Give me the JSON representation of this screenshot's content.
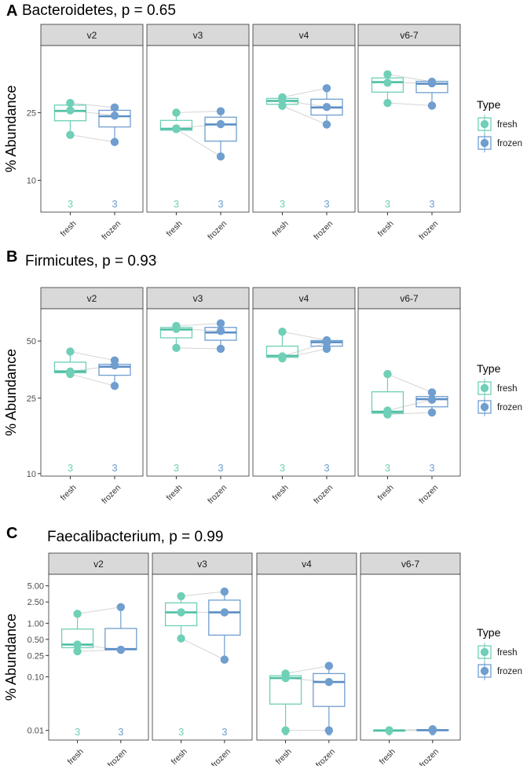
{
  "legend": {
    "title": "Type",
    "items": [
      {
        "label": "fresh",
        "color": "#6fcfb7"
      },
      {
        "label": "frozen",
        "color": "#6f9ecf"
      }
    ]
  },
  "y_axis_label": "% Abundance",
  "x_tick_labels": [
    "fresh",
    "frozen"
  ],
  "chart_data": [
    {
      "type": "boxplot",
      "letter": "A",
      "title": "Bacteroidetes, p = 0.65",
      "ylabel": "% Abundance",
      "yscale": "log",
      "ylim": [
        6.5,
        62
      ],
      "yticks": [
        {
          "value": 10,
          "label": "10"
        },
        {
          "value": 25,
          "label": "25"
        }
      ],
      "facets": [
        {
          "label": "v2",
          "fresh": {
            "points": [
              28.5,
              25.8,
              18.5
            ],
            "box": [
              22.4,
              25.6,
              27.7
            ],
            "whisker": [
              18.5,
              28.5
            ],
            "n": "3"
          },
          "frozen": {
            "points": [
              26.8,
              24.0,
              16.8
            ],
            "box": [
              20.6,
              23.8,
              25.8
            ],
            "whisker": [
              16.8,
              26.8
            ],
            "n": "3"
          }
        },
        {
          "label": "v3",
          "fresh": {
            "points": [
              25.0,
              20.2,
              20.0
            ],
            "box": [
              19.7,
              20.1,
              22.5
            ],
            "whisker": [
              19.7,
              25.0
            ],
            "n": "3"
          },
          "frozen": {
            "points": [
              25.5,
              21.4,
              13.8
            ],
            "box": [
              17.0,
              21.3,
              23.5
            ],
            "whisker": [
              13.8,
              25.5
            ],
            "n": "3"
          }
        },
        {
          "label": "v4",
          "fresh": {
            "points": [
              30.8,
              29.5,
              27.4
            ],
            "box": [
              28.0,
              29.3,
              30.3
            ],
            "whisker": [
              27.0,
              30.8
            ],
            "n": "3"
          },
          "frozen": {
            "points": [
              34.8,
              27.0,
              21.3
            ],
            "box": [
              24.2,
              26.8,
              30.0
            ],
            "whisker": [
              21.3,
              34.8
            ],
            "n": "3"
          }
        },
        {
          "label": "v6-7",
          "fresh": {
            "points": [
              42.0,
              37.5,
              28.5
            ],
            "box": [
              33.0,
              37.8,
              40.0
            ],
            "whisker": [
              28.5,
              42.5
            ],
            "n": "3"
          },
          "frozen": {
            "points": [
              38.0,
              37.2,
              27.5
            ],
            "box": [
              32.8,
              37.0,
              38.2
            ],
            "whisker": [
              27.5,
              38.2
            ],
            "n": "3"
          }
        }
      ]
    },
    {
      "type": "boxplot",
      "letter": "B",
      "title": "Firmicutes, p = 0.93",
      "ylabel": "% Abundance",
      "yscale": "log",
      "ylim": [
        9.7,
        74
      ],
      "yticks": [
        {
          "value": 10,
          "label": "10"
        },
        {
          "value": 25,
          "label": "25"
        },
        {
          "value": 50,
          "label": "50"
        }
      ],
      "facets": [
        {
          "label": "v2",
          "fresh": {
            "points": [
              44.0,
              34.5,
              33.5
            ],
            "box": [
              34.0,
              34.6,
              38.7
            ],
            "whisker": [
              33.5,
              44.0
            ],
            "n": "3"
          },
          "frozen": {
            "points": [
              39.5,
              37.2,
              29.0
            ],
            "box": [
              33.0,
              36.6,
              37.7
            ],
            "whisker": [
              29.0,
              39.5
            ],
            "n": "3"
          }
        },
        {
          "label": "v3",
          "fresh": {
            "points": [
              60.0,
              58.0,
              46.0
            ],
            "box": [
              52.0,
              57.5,
              59.0
            ],
            "whisker": [
              46.0,
              60.5
            ],
            "n": "3"
          },
          "frozen": {
            "points": [
              62.0,
              56.5,
              45.5
            ],
            "box": [
              50.5,
              55.5,
              59.0
            ],
            "whisker": [
              45.5,
              62.0
            ],
            "n": "3"
          }
        },
        {
          "label": "v4",
          "fresh": {
            "points": [
              56.0,
              41.5,
              40.5
            ],
            "box": [
              41.0,
              41.8,
              47.0
            ],
            "whisker": [
              40.5,
              56.0
            ],
            "n": "3"
          },
          "frozen": {
            "points": [
              50.5,
              49.0,
              45.5
            ],
            "box": [
              47.0,
              49.3,
              50.3
            ],
            "whisker": [
              45.5,
              50.5
            ],
            "n": "3"
          }
        },
        {
          "label": "v6-7",
          "fresh": {
            "points": [
              33.5,
              21.5,
              20.5
            ],
            "box": [
              20.8,
              21.2,
              27.0
            ],
            "whisker": [
              20.0,
              33.5
            ],
            "n": "3"
          },
          "frozen": {
            "points": [
              26.8,
              24.5,
              21.0
            ],
            "box": [
              22.5,
              24.7,
              25.5
            ],
            "whisker": [
              21.0,
              26.8
            ],
            "n": "3"
          }
        }
      ]
    },
    {
      "type": "boxplot",
      "letter": "C",
      "title": "Faecalibacterium, p = 0.99",
      "ylabel": "% Abundance",
      "yscale": "log",
      "ylim": [
        0.0066,
        8.2
      ],
      "yticks": [
        {
          "value": 0.01,
          "label": "0.01"
        },
        {
          "value": 0.1,
          "label": "0.10"
        },
        {
          "value": 0.25,
          "label": "0.25"
        },
        {
          "value": 0.5,
          "label": "0.50"
        },
        {
          "value": 1.0,
          "label": "1.00"
        },
        {
          "value": 2.5,
          "label": "2.50"
        },
        {
          "value": 5.0,
          "label": "5.00"
        }
      ],
      "facets": [
        {
          "label": "v2",
          "fresh": {
            "points": [
              1.5,
              0.4,
              0.3
            ],
            "box": [
              0.35,
              0.4,
              0.78
            ],
            "whisker": [
              0.28,
              1.6
            ],
            "n": "3"
          },
          "frozen": {
            "points": [
              2.0,
              0.32,
              0.32
            ],
            "box": [
              0.32,
              0.33,
              0.8
            ],
            "whisker": [
              0.31,
              2.0
            ],
            "n": "3"
          }
        },
        {
          "label": "v3",
          "fresh": {
            "points": [
              3.2,
              1.6,
              0.52
            ],
            "box": [
              0.9,
              1.6,
              2.4
            ],
            "whisker": [
              0.52,
              3.2
            ],
            "n": "3"
          },
          "frozen": {
            "points": [
              3.9,
              1.6,
              0.21
            ],
            "box": [
              0.6,
              1.6,
              2.7
            ],
            "whisker": [
              0.21,
              3.9
            ],
            "n": "3"
          }
        },
        {
          "label": "v4",
          "fresh": {
            "points": [
              0.115,
              0.095,
              0.01
            ],
            "box": [
              0.031,
              0.095,
              0.105
            ],
            "whisker": [
              0.01,
              0.115
            ],
            "n": "3"
          },
          "frozen": {
            "points": [
              0.16,
              0.08,
              0.01
            ],
            "box": [
              0.028,
              0.08,
              0.115
            ],
            "whisker": [
              0.01,
              0.16
            ],
            "n": "3"
          }
        },
        {
          "label": "v6-7",
          "fresh": {
            "points": [
              0.01,
              0.01,
              0.01
            ],
            "box": [
              0.01,
              0.01,
              0.01
            ],
            "whisker": [
              0.01,
              0.01
            ],
            "n": "3"
          },
          "frozen": {
            "points": [
              0.0105,
              0.0102,
              0.01
            ],
            "box": [
              0.01,
              0.0101,
              0.0103
            ],
            "whisker": [
              0.01,
              0.0105
            ],
            "n": "3"
          }
        }
      ]
    }
  ]
}
